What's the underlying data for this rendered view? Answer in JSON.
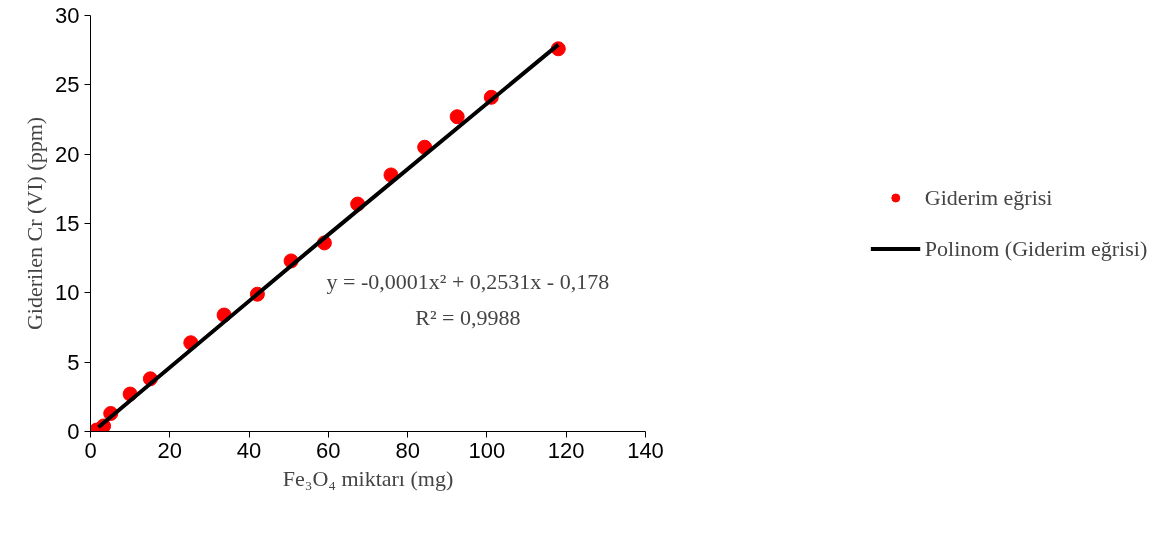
{
  "chart_data": {
    "type": "scatter",
    "xlabel": "Fe₃O₄ miktarı (mg)",
    "ylabel": "Giderilen Cr (VI) (ppm)",
    "xlim": [
      0,
      140
    ],
    "xticks": [
      0,
      20,
      40,
      60,
      80,
      100,
      120,
      140
    ],
    "ylim": [
      0,
      30
    ],
    "yticks": [
      0,
      5,
      10,
      15,
      20,
      25,
      30
    ],
    "grid": false,
    "legend": "right",
    "series": [
      {
        "name": "Giderim eğrisi",
        "marker": "circle",
        "color": "#ff0000",
        "x": [
          1.5,
          3.3,
          5.1,
          10,
          15.1,
          25.3,
          33.7,
          42.1,
          50.6,
          59,
          67.4,
          75.8,
          84.3,
          92.5,
          101.1,
          118
        ],
        "values": [
          0.1,
          0.4,
          1.3,
          2.7,
          3.8,
          6.4,
          8.4,
          9.9,
          12.3,
          13.6,
          16.4,
          18.5,
          20.5,
          22.7,
          24.1,
          27.6
        ]
      },
      {
        "name": "Polinom (Giderim eğrisi)",
        "type": "line",
        "color": "#000000",
        "x": [
          2,
          60,
          118
        ],
        "values": [
          0.3,
          14.2,
          27.9
        ]
      }
    ],
    "annotations": [
      "y = -0,0001x² + 0,2531x - 0,178",
      "R² = 0,9988"
    ]
  }
}
